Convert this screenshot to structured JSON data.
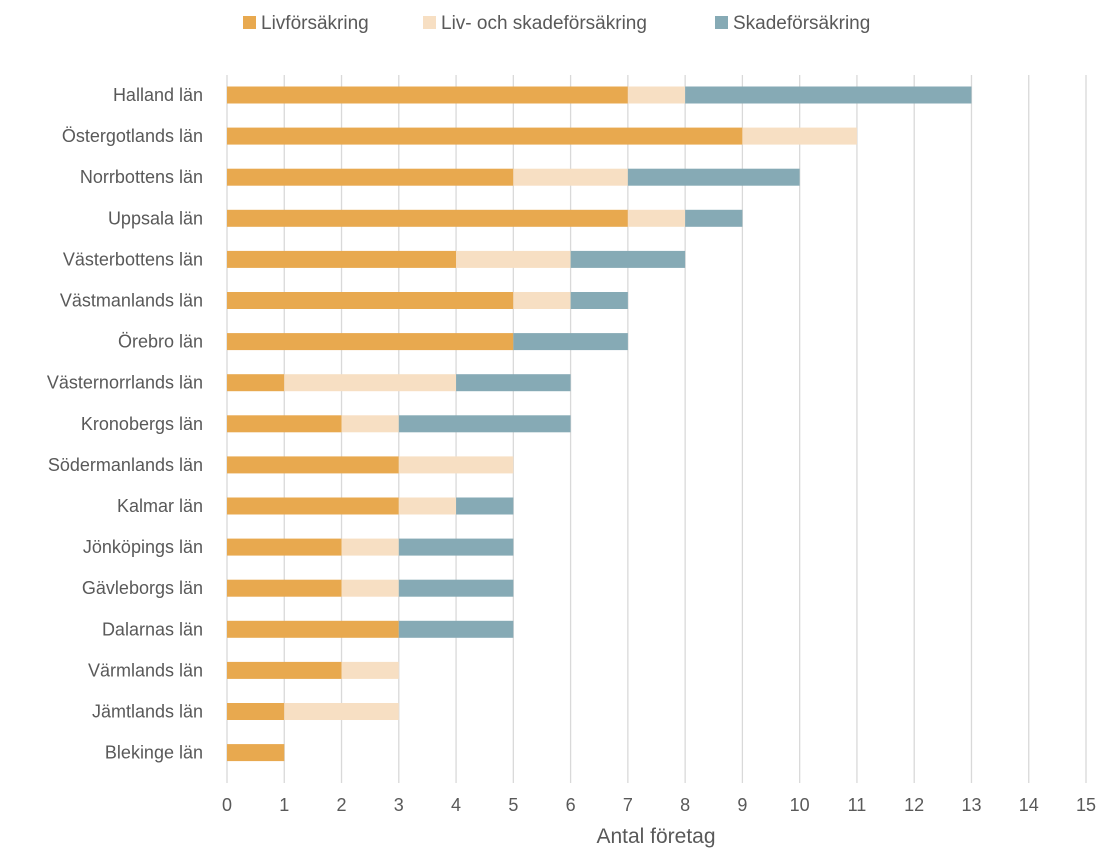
{
  "chart_data": {
    "type": "bar",
    "orientation": "horizontal",
    "stacked": true,
    "xlabel": "Antal företag",
    "ylabel": "",
    "xlim": [
      0,
      15
    ],
    "xticks": [
      0,
      1,
      2,
      3,
      4,
      5,
      6,
      7,
      8,
      9,
      10,
      11,
      12,
      13,
      14,
      15
    ],
    "grid": "vertical",
    "legend": "top-center",
    "categories": [
      "Halland län",
      "Östergotlands län",
      "Norrbottens län",
      "Uppsala län",
      "Västerbottens län",
      "Västmanlands län",
      "Örebro län",
      "Västernorrlands län",
      "Kronobergs län",
      "Södermanlands län",
      "Kalmar län",
      "Jönköpings län",
      "Gävleborgs län",
      "Dalarnas län",
      "Värmlands län",
      "Jämtlands län",
      "Blekinge län"
    ],
    "series": [
      {
        "name": "Livförsäkring",
        "color": "#E8A94F",
        "values": [
          7,
          9,
          5,
          7,
          4,
          5,
          5,
          1,
          2,
          3,
          3,
          2,
          2,
          3,
          2,
          1,
          1
        ]
      },
      {
        "name": "Liv- och skadeförsäkring",
        "color": "#F7DFC3",
        "values": [
          1,
          2,
          2,
          1,
          2,
          1,
          0,
          3,
          1,
          2,
          1,
          1,
          1,
          0,
          1,
          2,
          0
        ]
      },
      {
        "name": "Skadeförsäkring",
        "color": "#86AAB5",
        "values": [
          5,
          0,
          3,
          1,
          2,
          1,
          2,
          2,
          3,
          0,
          1,
          2,
          2,
          2,
          0,
          0,
          0
        ]
      }
    ]
  }
}
